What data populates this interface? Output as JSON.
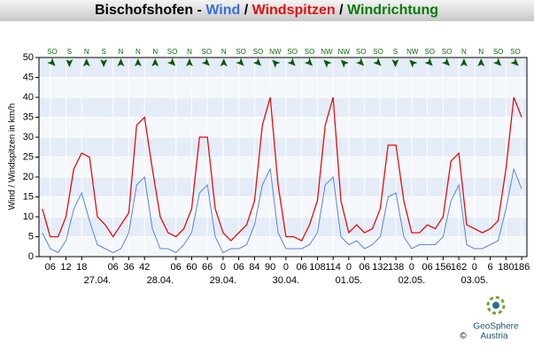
{
  "chart_data": {
    "type": "line",
    "title_segments": [
      {
        "text": "Bischofshofen - ",
        "color": "#000000"
      },
      {
        "text": "Wind",
        "color": "#3a6fd8"
      },
      {
        "text": " / ",
        "color": "#000000"
      },
      {
        "text": "Windspitzen",
        "color": "#e01010"
      },
      {
        "text": " / ",
        "color": "#000000"
      },
      {
        "text": "Windrichtung",
        "color": "#0a7a0a"
      }
    ],
    "y_label": "Wind / Windspitzen in km/h",
    "x": [
      3,
      6,
      9,
      12,
      15,
      18,
      21,
      24,
      27,
      30,
      33,
      36,
      39,
      42,
      45,
      48,
      51,
      54,
      57,
      60,
      63,
      66,
      69,
      72,
      75,
      78,
      81,
      84,
      87,
      90,
      93,
      96,
      99,
      102,
      105,
      108,
      111,
      114,
      117,
      120,
      123,
      126,
      129,
      132,
      135,
      138,
      141,
      144,
      147,
      150,
      153,
      156,
      159,
      162,
      165,
      168,
      171,
      174,
      177,
      180,
      183,
      186
    ],
    "series": [
      {
        "name": "Windspitzen",
        "color": "#e01010",
        "values": [
          12,
          5,
          5,
          10,
          22,
          26,
          25,
          10,
          8,
          5,
          8,
          11,
          33,
          35,
          22,
          10,
          6,
          5,
          7,
          12,
          30,
          30,
          12,
          6,
          4,
          6,
          8,
          14,
          33,
          40,
          18,
          5,
          5,
          4,
          8,
          14,
          33,
          40,
          14,
          6,
          8,
          6,
          7,
          12,
          28,
          28,
          14,
          6,
          6,
          8,
          7,
          10,
          24,
          26,
          8,
          7,
          6,
          7,
          9,
          22,
          40,
          35
        ]
      },
      {
        "name": "Wind",
        "color": "#5b86d8",
        "values": [
          6,
          2,
          1,
          4,
          12,
          16,
          9,
          3,
          2,
          1,
          2,
          6,
          18,
          20,
          7,
          2,
          2,
          1,
          3,
          6,
          16,
          18,
          5,
          1,
          2,
          2,
          3,
          8,
          18,
          22,
          6,
          2,
          2,
          2,
          3,
          6,
          18,
          20,
          5,
          3,
          4,
          2,
          3,
          5,
          15,
          16,
          5,
          2,
          3,
          3,
          3,
          5,
          14,
          18,
          3,
          2,
          2,
          3,
          4,
          12,
          22,
          17
        ]
      }
    ],
    "directions": [
      "SO",
      "S",
      "N",
      "S",
      "N",
      "N",
      "N",
      "SO",
      "N",
      "SO",
      "N",
      "SO",
      "SO",
      "NW",
      "SO",
      "SO",
      "NW",
      "NW",
      "SO",
      "SO",
      "S",
      "NW",
      "SO",
      "SO",
      "N",
      "N",
      "SO",
      "SO"
    ],
    "xlim": [
      1.7,
      188
    ],
    "xticks": [
      {
        "value": 6,
        "label": "06"
      },
      12,
      18,
      {
        "value": 30,
        "label": "06"
      },
      36,
      42,
      {
        "value": 54,
        "label": "06"
      },
      60,
      66,
      {
        "value": 72,
        "label": "0"
      },
      {
        "value": 78,
        "label": "06"
      },
      84,
      90,
      {
        "value": 96,
        "label": "0"
      },
      {
        "value": 102,
        "label": "06"
      },
      108,
      114,
      {
        "value": 120,
        "label": "0"
      },
      {
        "value": 126,
        "label": "06"
      },
      132,
      138,
      {
        "value": 144,
        "label": "0"
      },
      {
        "value": 150,
        "label": "06"
      },
      156,
      162,
      {
        "value": 168,
        "label": "0"
      },
      {
        "value": 174,
        "label": "6"
      },
      180,
      186
    ],
    "date_ticks": [
      {
        "value": 24,
        "label": "27.04."
      },
      {
        "value": 48,
        "label": "28.04."
      },
      {
        "value": 72,
        "label": "29.04."
      },
      {
        "value": 96,
        "label": "30.04."
      },
      {
        "value": 120,
        "label": "01.05."
      },
      {
        "value": 144,
        "label": "02.05."
      },
      {
        "value": 168,
        "label": "03.05."
      }
    ],
    "ylim": [
      0,
      50
    ],
    "yticks": [
      0,
      5,
      10,
      15,
      20,
      25,
      30,
      35,
      40,
      45,
      50
    ],
    "grid": true,
    "logo": {
      "name": "GeoSphere",
      "country": "Austria",
      "copyright": "©"
    }
  }
}
